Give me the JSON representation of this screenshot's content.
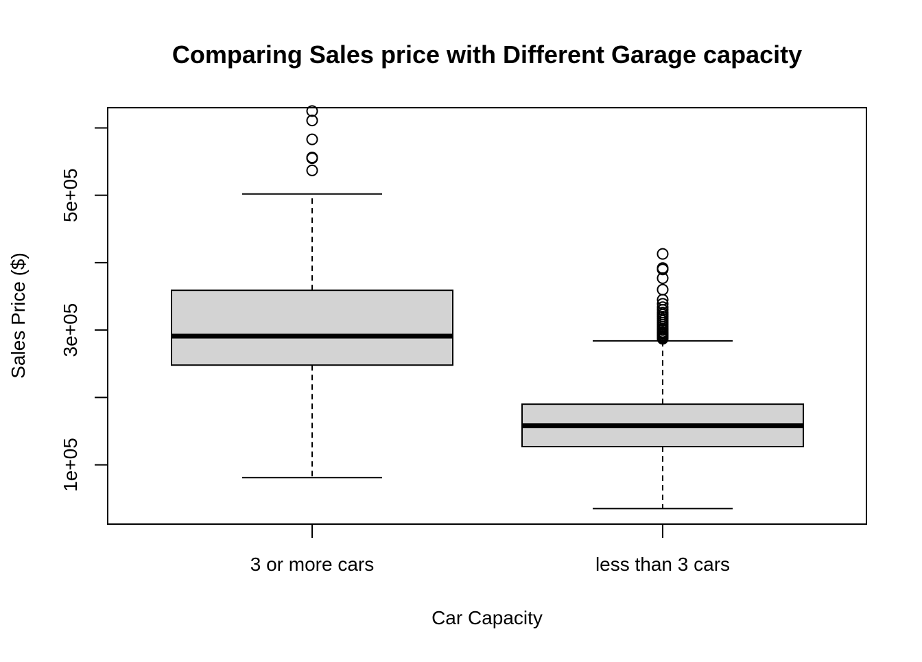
{
  "chart_data": {
    "type": "boxplot",
    "title": "Comparing Sales price with Different Garage capacity",
    "xlabel": "Car Capacity",
    "ylabel": "Sales Price ($)",
    "ylim": [
      12000,
      630000
    ],
    "y_ticks": [
      100000,
      200000,
      300000,
      400000,
      500000,
      600000
    ],
    "y_tick_labels": [
      "1e+05",
      "",
      "3e+05",
      "",
      "5e+05",
      ""
    ],
    "categories": [
      "3 or more cars",
      "less than 3 cars"
    ],
    "box_fill": "#d3d3d3",
    "boxes": [
      {
        "name": "3 or more cars",
        "whisker_low": 81000,
        "q1": 248000,
        "median": 291000,
        "q3": 359000,
        "whisker_high": 502000,
        "outliers": [
          537000,
          555000,
          556000,
          583000,
          611000,
          625000
        ]
      },
      {
        "name": "less than 3 cars",
        "whisker_low": 35000,
        "q1": 127000,
        "median": 158000,
        "q3": 190000,
        "whisker_high": 284000,
        "outliers": [
          287000,
          289000,
          291000,
          293000,
          295000,
          297000,
          300000,
          302000,
          305000,
          308000,
          311000,
          314000,
          317000,
          320000,
          323000,
          326000,
          330000,
          334000,
          339000,
          345000,
          360000,
          377000,
          390000,
          392000,
          413000
        ]
      }
    ]
  }
}
